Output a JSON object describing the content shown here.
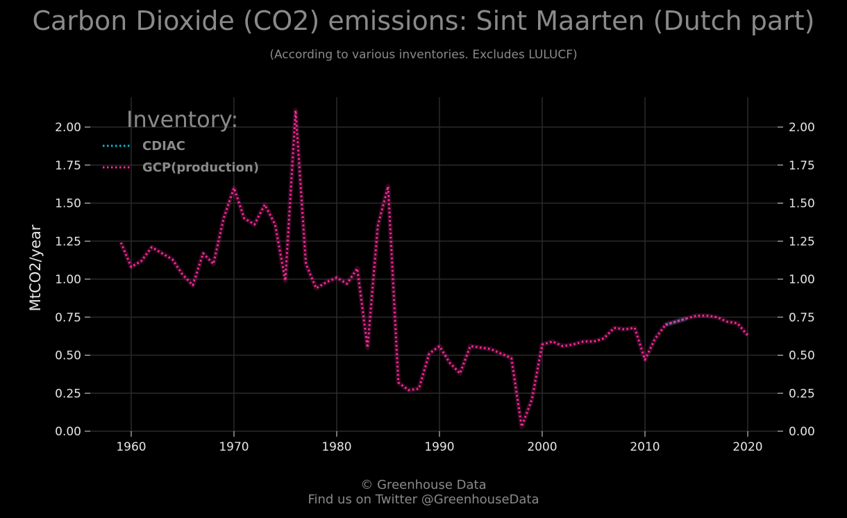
{
  "chart_data": {
    "type": "line",
    "title": "Carbon Dioxide (CO2) emissions: Sint Maarten (Dutch part)",
    "subtitle": "(According to various inventories. Excludes LULUCF)",
    "xlabel": "",
    "ylabel": "MtCO2/year",
    "xlim": [
      1956,
      2023
    ],
    "ylim": [
      0,
      2.2
    ],
    "x_ticks": [
      "1960",
      "1970",
      "1980",
      "1990",
      "2000",
      "2010",
      "2020"
    ],
    "y_ticks": [
      "0.00",
      "0.25",
      "0.50",
      "0.75",
      "1.00",
      "1.25",
      "1.50",
      "1.75",
      "2.00"
    ],
    "grid": true,
    "legend_title": "Inventory:",
    "legend_position": "top-left",
    "series": [
      {
        "name": "CDIAC",
        "color": "#00bcd4",
        "x": [
          2012,
          2013,
          2014
        ],
        "y": [
          0.7,
          0.72,
          0.74
        ]
      },
      {
        "name": "GCP(production)",
        "color": "#ff2a9d",
        "x": [
          1959,
          1960,
          1961,
          1962,
          1963,
          1964,
          1965,
          1966,
          1967,
          1968,
          1969,
          1970,
          1971,
          1972,
          1973,
          1974,
          1975,
          1976,
          1977,
          1978,
          1979,
          1980,
          1981,
          1982,
          1983,
          1984,
          1985,
          1986,
          1987,
          1988,
          1989,
          1990,
          1991,
          1992,
          1993,
          1994,
          1995,
          1996,
          1997,
          1998,
          1999,
          2000,
          2001,
          2002,
          2003,
          2004,
          2005,
          2006,
          2007,
          2008,
          2009,
          2010,
          2011,
          2012,
          2013,
          2014,
          2015,
          2016,
          2017,
          2018,
          2019,
          2020
        ],
        "y": [
          1.24,
          1.08,
          1.12,
          1.21,
          1.17,
          1.13,
          1.03,
          0.96,
          1.17,
          1.1,
          1.4,
          1.6,
          1.4,
          1.36,
          1.49,
          1.36,
          0.99,
          2.11,
          1.1,
          0.94,
          0.98,
          1.01,
          0.97,
          1.07,
          0.55,
          1.35,
          1.61,
          0.32,
          0.27,
          0.28,
          0.51,
          0.56,
          0.45,
          0.38,
          0.56,
          0.55,
          0.54,
          0.51,
          0.48,
          0.03,
          0.21,
          0.57,
          0.59,
          0.56,
          0.57,
          0.59,
          0.59,
          0.61,
          0.68,
          0.67,
          0.68,
          0.47,
          0.61,
          0.7,
          0.72,
          0.74,
          0.76,
          0.76,
          0.75,
          0.72,
          0.71,
          0.63
        ]
      }
    ]
  },
  "footer": {
    "line1": "© Greenhouse Data",
    "line2": "Find us on Twitter @GreenhouseData"
  }
}
